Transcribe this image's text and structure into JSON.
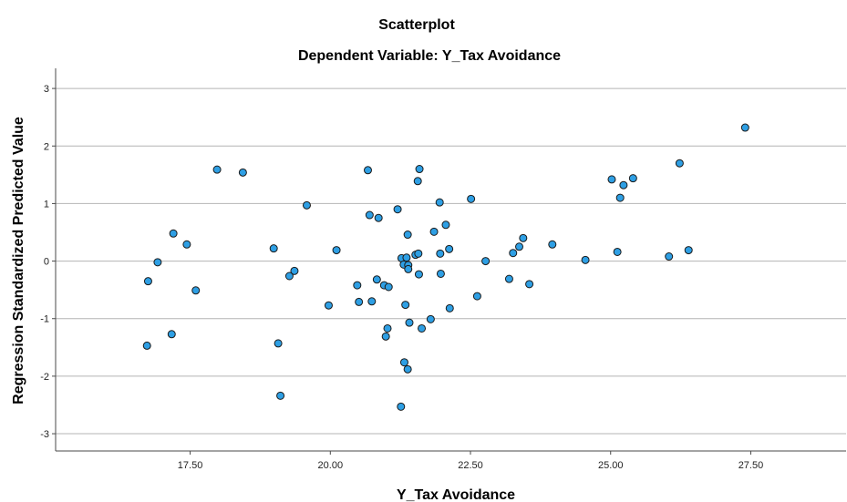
{
  "chart_data": {
    "type": "scatter",
    "title": "Scatterplot",
    "subtitle": "Dependent Variable: Y_Tax Avoidance",
    "xlabel": "Y_Tax Avoidance",
    "ylabel": "Regression Standardized Predicted Value",
    "xlim": [
      15.1,
      29.2
    ],
    "ylim": [
      -3.3,
      3.35
    ],
    "x_ticks": [
      "17.50",
      "20.00",
      "22.50",
      "25.00",
      "27.50"
    ],
    "x_tick_values": [
      17.5,
      20.0,
      22.5,
      25.0,
      27.5
    ],
    "y_ticks": [
      "3",
      "2",
      "1",
      "0",
      "-1",
      "-2",
      "-3"
    ],
    "y_tick_values": [
      3,
      2,
      1,
      0,
      -1,
      -2,
      -3
    ],
    "grid": "horizontal",
    "colors": {
      "point_fill": "#2e9fe4",
      "point_stroke": "#1a1a1a",
      "grid": "#b4b4b4",
      "axis": "#4a4a4a"
    },
    "points": [
      [
        16.73,
        -1.47
      ],
      [
        16.75,
        -0.35
      ],
      [
        16.92,
        -0.02
      ],
      [
        17.17,
        -1.27
      ],
      [
        17.2,
        0.48
      ],
      [
        17.44,
        0.29
      ],
      [
        17.6,
        -0.51
      ],
      [
        17.98,
        1.59
      ],
      [
        18.44,
        1.54
      ],
      [
        18.99,
        0.22
      ],
      [
        19.07,
        -1.43
      ],
      [
        19.11,
        -2.34
      ],
      [
        19.27,
        -0.26
      ],
      [
        19.36,
        -0.17
      ],
      [
        19.58,
        0.97
      ],
      [
        19.97,
        -0.77
      ],
      [
        20.11,
        0.19
      ],
      [
        20.48,
        -0.42
      ],
      [
        20.51,
        -0.71
      ],
      [
        20.67,
        1.58
      ],
      [
        20.7,
        0.8
      ],
      [
        20.74,
        -0.7
      ],
      [
        20.83,
        -0.32
      ],
      [
        20.86,
        0.75
      ],
      [
        20.96,
        -0.42
      ],
      [
        20.99,
        -1.31
      ],
      [
        21.02,
        -1.17
      ],
      [
        21.04,
        -0.45
      ],
      [
        21.2,
        0.9
      ],
      [
        21.26,
        -2.53
      ],
      [
        21.27,
        0.05
      ],
      [
        21.31,
        -0.06
      ],
      [
        21.32,
        -1.76
      ],
      [
        21.34,
        -0.76
      ],
      [
        21.36,
        0.06
      ],
      [
        21.38,
        0.46
      ],
      [
        21.38,
        -1.88
      ],
      [
        21.39,
        -0.07
      ],
      [
        21.39,
        -0.14
      ],
      [
        21.41,
        -1.07
      ],
      [
        21.52,
        0.11
      ],
      [
        21.56,
        1.39
      ],
      [
        21.57,
        0.13
      ],
      [
        21.58,
        -0.23
      ],
      [
        21.59,
        1.6
      ],
      [
        21.63,
        -1.17
      ],
      [
        21.79,
        -1.01
      ],
      [
        21.85,
        0.51
      ],
      [
        21.95,
        1.02
      ],
      [
        21.96,
        0.13
      ],
      [
        21.97,
        -0.22
      ],
      [
        22.06,
        0.63
      ],
      [
        22.12,
        0.21
      ],
      [
        22.13,
        -0.82
      ],
      [
        22.51,
        1.08
      ],
      [
        22.62,
        -0.61
      ],
      [
        22.77,
        0.0
      ],
      [
        23.19,
        -0.31
      ],
      [
        23.26,
        0.14
      ],
      [
        23.37,
        0.25
      ],
      [
        23.44,
        0.4
      ],
      [
        23.55,
        -0.4
      ],
      [
        23.96,
        0.29
      ],
      [
        24.55,
        0.02
      ],
      [
        25.02,
        1.42
      ],
      [
        25.12,
        0.16
      ],
      [
        25.17,
        1.1
      ],
      [
        25.23,
        1.32
      ],
      [
        25.4,
        1.44
      ],
      [
        26.04,
        0.08
      ],
      [
        26.23,
        1.7
      ],
      [
        26.39,
        0.19
      ],
      [
        27.4,
        2.32
      ]
    ]
  }
}
